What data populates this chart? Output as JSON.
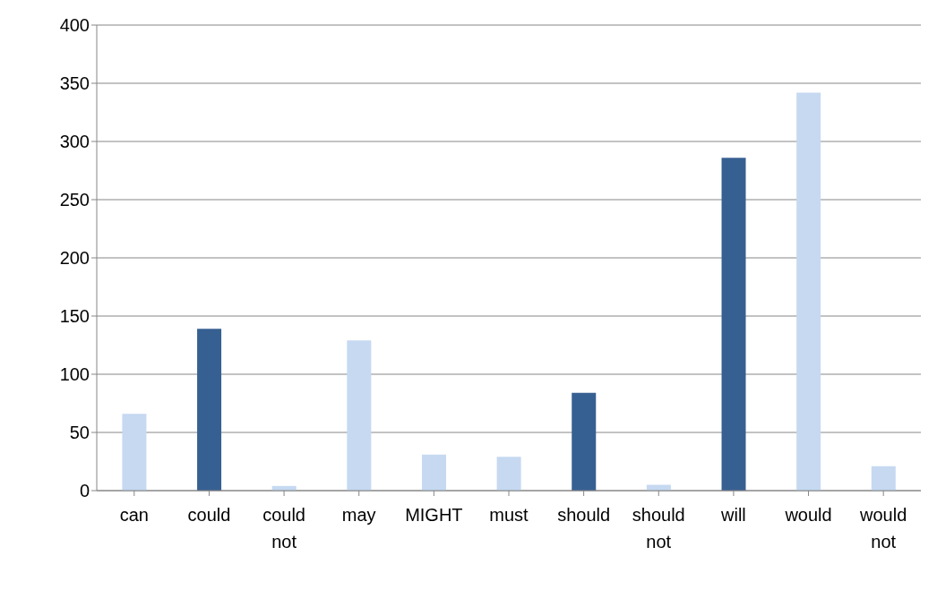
{
  "chart_data": {
    "type": "bar",
    "categories": [
      "can",
      "could",
      "could not",
      "may",
      "MIGHT",
      "must",
      "should",
      "should not",
      "will",
      "would",
      "would not"
    ],
    "values": [
      66,
      139,
      4,
      129,
      31,
      29,
      84,
      5,
      286,
      342,
      21
    ],
    "colors": [
      "#c6d9f1",
      "#376092",
      "#c6d9f1",
      "#c6d9f1",
      "#c6d9f1",
      "#c6d9f1",
      "#376092",
      "#c6d9f1",
      "#376092",
      "#c6d9f1",
      "#c6d9f1"
    ],
    "ylim": [
      0,
      400
    ],
    "yticks": [
      0,
      50,
      100,
      150,
      200,
      250,
      300,
      350,
      400
    ],
    "grid": "y"
  }
}
